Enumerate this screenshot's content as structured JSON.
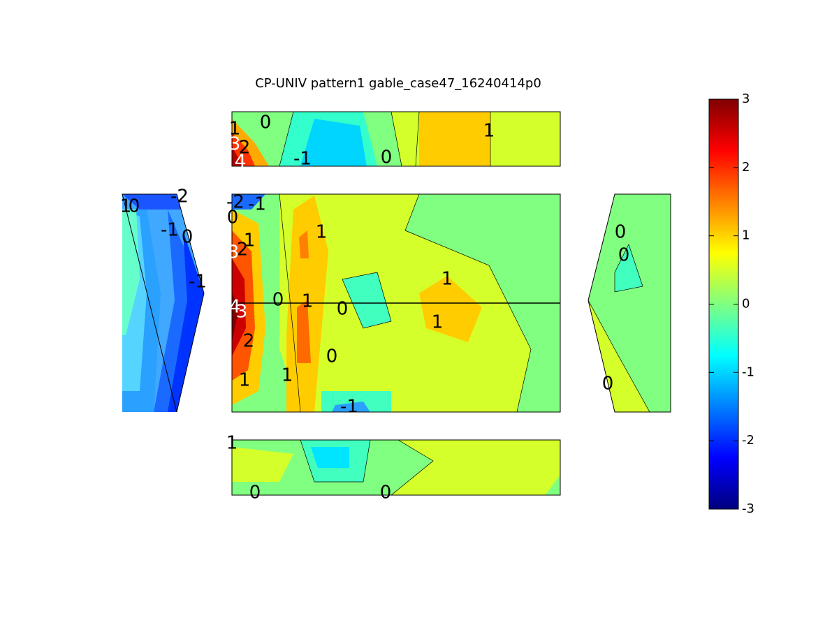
{
  "chart_data": {
    "type": "contour",
    "title": "CP-UNIV pattern1 gable_case47_16240414p0",
    "colormap": "jet",
    "clim": [
      -3,
      3
    ],
    "colorbar_ticks": [
      -3,
      -2,
      -1,
      0,
      1,
      2,
      3
    ],
    "contour_labels": [
      1,
      0,
      3,
      2,
      4,
      -1,
      0,
      1,
      -2,
      -1,
      0,
      1,
      1,
      3,
      2,
      1,
      0,
      1,
      0,
      4,
      3,
      1,
      2,
      0,
      1,
      1,
      -1,
      1,
      0,
      -2,
      -1,
      0,
      -1,
      0,
      0,
      0,
      1,
      0,
      0
    ]
  }
}
